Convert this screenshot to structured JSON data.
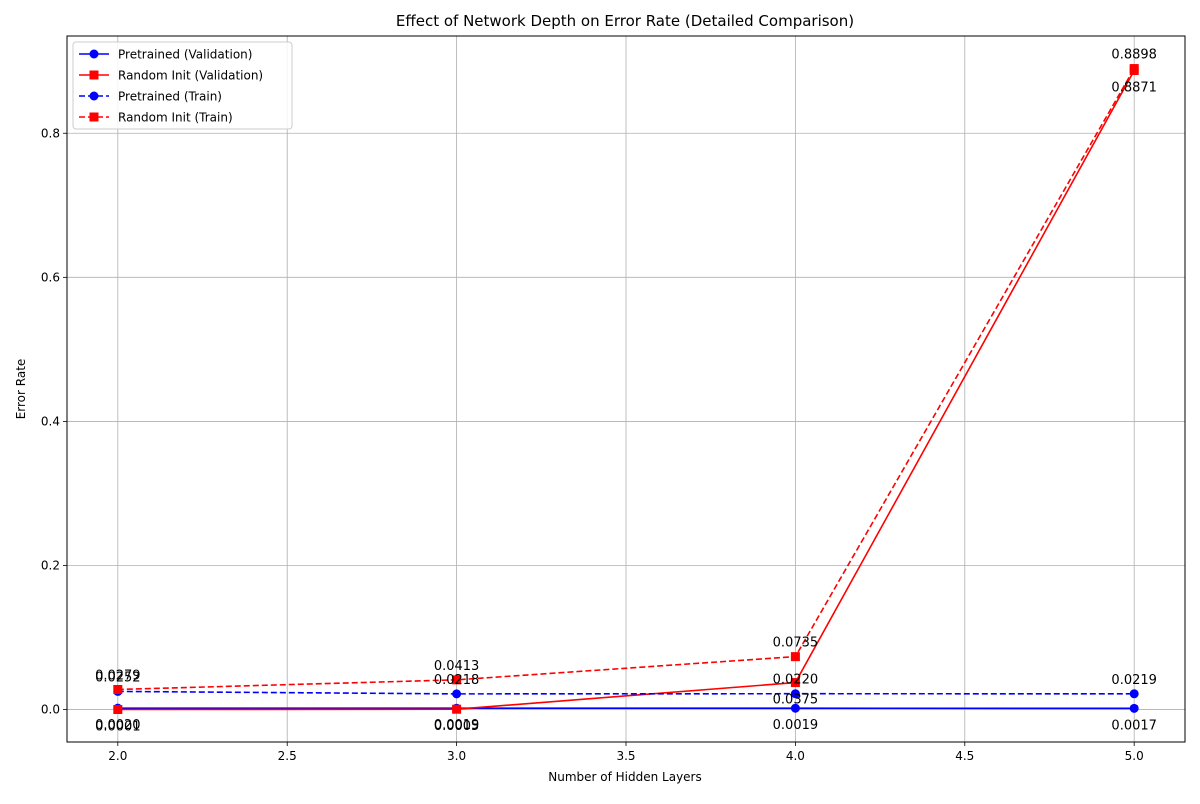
{
  "chart_data": {
    "type": "line",
    "title": "Effect of Network Depth on Error Rate (Detailed Comparison)",
    "xlabel": "Number of Hidden Layers",
    "ylabel": "Error Rate",
    "xlim": [
      1.85,
      5.15
    ],
    "ylim": [
      -0.045,
      0.935
    ],
    "x_ticks": [
      2.0,
      2.5,
      3.0,
      3.5,
      4.0,
      4.5,
      5.0
    ],
    "x_tick_labels": [
      "2.0",
      "2.5",
      "3.0",
      "3.5",
      "4.0",
      "4.5",
      "5.0"
    ],
    "y_ticks": [
      0.0,
      0.2,
      0.4,
      0.6,
      0.8
    ],
    "y_tick_labels": [
      "0.0",
      "0.2",
      "0.4",
      "0.6",
      "0.8"
    ],
    "grid": true,
    "legend_position": "top-left",
    "x": [
      2,
      3,
      4,
      5
    ],
    "series": [
      {
        "name": "Pretrained (Validation)",
        "values": [
          0.002,
          0.0019,
          0.0019,
          0.0017
        ],
        "labels": [
          "0.0020",
          "0.0019",
          "0.0019",
          "0.0017"
        ],
        "color": "#0000ff",
        "line_style": "solid",
        "marker": "circle"
      },
      {
        "name": "Random Init (Validation)",
        "values": [
          0.0001,
          0.0005,
          0.0375,
          0.8871
        ],
        "labels": [
          "0.0001",
          "0.0005",
          "0.0375",
          "0.8871"
        ],
        "color": "#ff0000",
        "line_style": "solid",
        "marker": "square"
      },
      {
        "name": "Pretrained (Train)",
        "values": [
          0.0252,
          0.0218,
          0.022,
          0.0219
        ],
        "labels": [
          "0.0252",
          "0.0218",
          "0.0220",
          "0.0219"
        ],
        "color": "#0000ff",
        "line_style": "dashed",
        "marker": "circle"
      },
      {
        "name": "Random Init (Train)",
        "values": [
          0.0279,
          0.0413,
          0.0735,
          0.8898
        ],
        "labels": [
          "0.0279",
          "0.0413",
          "0.0735",
          "0.8898"
        ],
        "color": "#ff0000",
        "line_style": "dashed",
        "marker": "square"
      }
    ]
  }
}
